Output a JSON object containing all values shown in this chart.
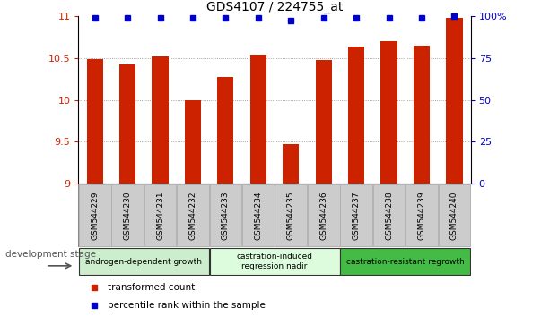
{
  "title": "GDS4107 / 224755_at",
  "categories": [
    "GSM544229",
    "GSM544230",
    "GSM544231",
    "GSM544232",
    "GSM544233",
    "GSM544234",
    "GSM544235",
    "GSM544236",
    "GSM544237",
    "GSM544238",
    "GSM544239",
    "GSM544240"
  ],
  "bar_values": [
    10.48,
    10.42,
    10.52,
    9.99,
    10.27,
    10.54,
    9.47,
    10.47,
    10.63,
    10.7,
    10.65,
    10.98
  ],
  "percentile_values": [
    99,
    99,
    99,
    99,
    99,
    99,
    97,
    99,
    99,
    99,
    99,
    100
  ],
  "bar_color": "#cc2200",
  "percentile_color": "#0000cc",
  "ylim_left": [
    9.0,
    11.0
  ],
  "ylim_right": [
    0,
    100
  ],
  "yticks_left": [
    9.0,
    9.5,
    10.0,
    10.5,
    11.0
  ],
  "yticks_right": [
    0,
    25,
    50,
    75,
    100
  ],
  "groups": [
    {
      "label": "androgen-dependent growth",
      "start": 0,
      "end": 3,
      "color": "#cceecc"
    },
    {
      "label": "castration-induced\nregression nadir",
      "start": 4,
      "end": 7,
      "color": "#ddfcdd"
    },
    {
      "label": "castration-resistant regrowth",
      "start": 8,
      "end": 11,
      "color": "#44bb44"
    }
  ],
  "xlabel_stage": "development stage",
  "legend_bar": "transformed count",
  "legend_pct": "percentile rank within the sample",
  "grid_color": "#888888",
  "bg_plot": "#ffffff",
  "bg_labels": "#cccccc",
  "bar_width": 0.5
}
